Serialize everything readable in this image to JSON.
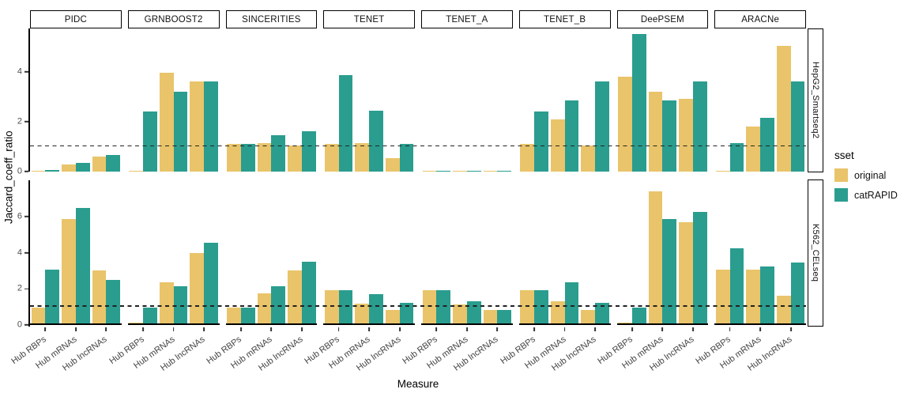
{
  "figure": {
    "y_axis_title": "Jaccard_coeff_ratio",
    "x_axis_title": "Measure",
    "legend": {
      "title": "sset",
      "items": [
        {
          "label": "original",
          "color": "#E9C46A"
        },
        {
          "label": "catRAPID",
          "color": "#2A9D8F"
        }
      ]
    }
  },
  "chart_data": {
    "type": "bar",
    "title": "",
    "xlabel": "Measure",
    "ylabel": "Jaccard_coeff_ratio",
    "grid": "off",
    "legend_position": "right",
    "legend_title": "sset",
    "series_names": [
      "original",
      "catRAPID"
    ],
    "series_colors": {
      "original": "#E9C46A",
      "catRAPID": "#2A9D8F"
    },
    "categories": [
      "Hub RBPs",
      "Hub mRNAs",
      "Hub lncRNAs"
    ],
    "facet_columns": [
      "PIDC",
      "GRNBOOST2",
      "SINCERITIES",
      "TENET",
      "TENET_A",
      "TENET_B",
      "DeePSEM",
      "ARACNe"
    ],
    "facet_rows": [
      {
        "label": "HepG2_Smartseq2",
        "ylim": [
          0,
          5.7
        ],
        "yticks": [
          0,
          2,
          4
        ]
      },
      {
        "label": "K562_CELseq",
        "ylim": [
          0,
          8.0
        ],
        "yticks": [
          0,
          2,
          4,
          6
        ]
      }
    ],
    "reference_line_y": 1,
    "values": {
      "HepG2_Smartseq2": {
        "PIDC": {
          "original": [
            0.02,
            0.3,
            0.6
          ],
          "catRAPID": [
            0.05,
            0.35,
            0.65
          ]
        },
        "GRNBOOST2": {
          "original": [
            0.02,
            3.95,
            3.6
          ],
          "catRAPID": [
            2.4,
            3.2,
            3.6
          ]
        },
        "SINCERITIES": {
          "original": [
            1.1,
            1.15,
            1.05
          ],
          "catRAPID": [
            1.1,
            1.45,
            1.6
          ]
        },
        "TENET": {
          "original": [
            1.1,
            1.15,
            0.55
          ],
          "catRAPID": [
            3.85,
            2.45,
            1.1
          ]
        },
        "TENET_A": {
          "original": [
            0.03,
            0.03,
            0.03
          ],
          "catRAPID": [
            0.03,
            0.03,
            0.03
          ]
        },
        "TENET_B": {
          "original": [
            1.1,
            2.1,
            1.05
          ],
          "catRAPID": [
            2.4,
            2.85,
            3.6
          ]
        },
        "DeePSEM": {
          "original": [
            3.8,
            3.2,
            2.9
          ],
          "catRAPID": [
            5.5,
            2.85,
            3.6
          ]
        },
        "ARACNe": {
          "original": [
            0.03,
            1.8,
            5.05
          ],
          "catRAPID": [
            1.15,
            2.15,
            3.6
          ]
        }
      },
      "K562_CELseq": {
        "PIDC": {
          "original": [
            0.9,
            5.85,
            2.95
          ],
          "catRAPID": [
            3.0,
            6.45,
            2.45
          ]
        },
        "GRNBOOST2": {
          "original": [
            0.03,
            2.3,
            3.95
          ],
          "catRAPID": [
            0.9,
            2.1,
            4.5
          ]
        },
        "SINCERITIES": {
          "original": [
            0.9,
            1.7,
            2.95
          ],
          "catRAPID": [
            0.9,
            2.1,
            3.45
          ]
        },
        "TENET": {
          "original": [
            1.85,
            1.1,
            0.75
          ],
          "catRAPID": [
            1.85,
            1.65,
            1.15
          ]
        },
        "TENET_A": {
          "original": [
            1.85,
            1.05,
            0.75
          ],
          "catRAPID": [
            1.85,
            1.25,
            0.75
          ]
        },
        "TENET_B": {
          "original": [
            1.85,
            1.25,
            0.75
          ],
          "catRAPID": [
            1.85,
            2.3,
            1.15
          ]
        },
        "DeePSEM": {
          "original": [
            0.03,
            7.4,
            5.65
          ],
          "catRAPID": [
            0.9,
            5.85,
            6.25
          ]
        },
        "ARACNe": {
          "original": [
            3.0,
            3.0,
            1.55
          ],
          "catRAPID": [
            4.2,
            3.2,
            3.4
          ]
        }
      }
    }
  }
}
